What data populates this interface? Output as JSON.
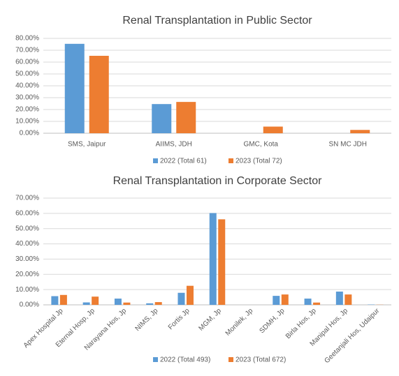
{
  "chart_data": [
    {
      "type": "bar",
      "title": "Renal Transplantation in Public Sector",
      "categories": [
        "SMS, Jaipur",
        "AIIMS, JDH",
        "GMC, Kota",
        "SN MC JDH"
      ],
      "series": [
        {
          "name": "2022 (Total 61)",
          "color": "#5b9bd5",
          "values": [
            75.4,
            24.6,
            0,
            0
          ]
        },
        {
          "name": "2023 (Total 72)",
          "color": "#ed7d31",
          "values": [
            65.3,
            26.4,
            5.6,
            2.8
          ]
        }
      ],
      "ylim": [
        0,
        80
      ],
      "yticks": [
        {
          "value": 0,
          "label": "0.00%"
        },
        {
          "value": 10,
          "label": "10.00%"
        },
        {
          "value": 20,
          "label": "20.00%"
        },
        {
          "value": 30,
          "label": "30.00%"
        },
        {
          "value": 40,
          "label": "40.00%"
        },
        {
          "value": 50,
          "label": "50.00%"
        },
        {
          "value": 60,
          "label": "60.00%"
        },
        {
          "value": 70,
          "label": "70.00%"
        },
        {
          "value": 80,
          "label": "80.00%"
        }
      ],
      "grid": true,
      "legend": "bottom"
    },
    {
      "type": "bar",
      "title": "Renal Transplantation in Corporate Sector",
      "categories": [
        "Apex Hospital Jp",
        "Eternal Hosp, Jp",
        "Narayana Hos, Jp",
        "NIMS, Jp",
        "Fortis Jp",
        "MGM, Jp",
        "Monilek, Jp",
        "SDMH, Jp",
        "Birla Hos, Jp",
        "Manipal Hos, Jp",
        "Geetanjali Hos, Udaipur"
      ],
      "series": [
        {
          "name": "2022 (Total 493)",
          "color": "#5b9bd5",
          "values": [
            5.7,
            1.6,
            4.1,
            1.0,
            7.9,
            60.2,
            0,
            5.9,
            4.1,
            8.7,
            0.2
          ]
        },
        {
          "name": "2023 (Total 672)",
          "color": "#ed7d31",
          "values": [
            6.5,
            5.4,
            1.5,
            1.8,
            12.5,
            56.1,
            0,
            6.8,
            1.5,
            6.8,
            0.1
          ]
        }
      ],
      "ylim": [
        0,
        70
      ],
      "yticks": [
        {
          "value": 0,
          "label": "0.00%"
        },
        {
          "value": 10,
          "label": "10.00%"
        },
        {
          "value": 20,
          "label": "20.00%"
        },
        {
          "value": 30,
          "label": "30.00%"
        },
        {
          "value": 40,
          "label": "40.00%"
        },
        {
          "value": 50,
          "label": "50.00%"
        },
        {
          "value": 60,
          "label": "60.00%"
        },
        {
          "value": 70,
          "label": "70.00%"
        }
      ],
      "grid": true,
      "legend": "bottom"
    }
  ]
}
